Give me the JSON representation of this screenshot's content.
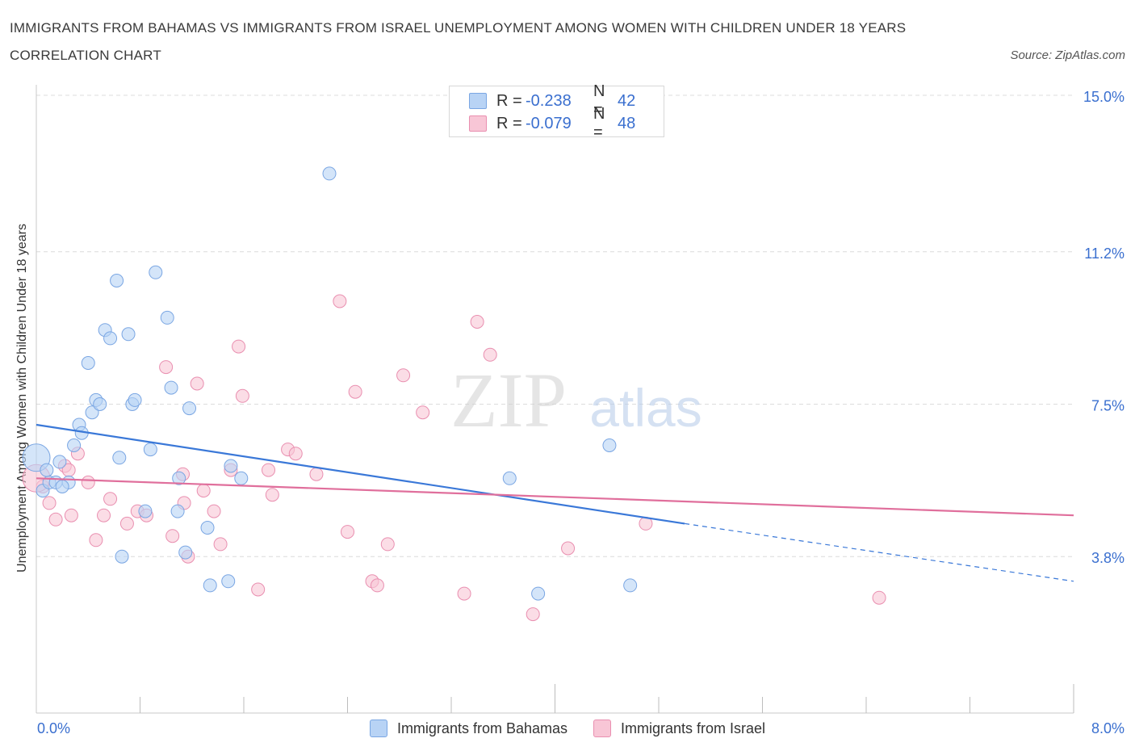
{
  "header": {
    "title": "IMMIGRANTS FROM BAHAMAS VS IMMIGRANTS FROM ISRAEL UNEMPLOYMENT AMONG WOMEN WITH CHILDREN UNDER 18 YEARS CORRELATION CHART",
    "source": "Source: ZipAtlas.com"
  },
  "legend": {
    "rows": [
      {
        "r_label": "R =",
        "r_value": "-0.238",
        "n_label": "N =",
        "n_value": "42"
      },
      {
        "r_label": "R =",
        "r_value": "-0.079",
        "n_label": "N =",
        "n_value": "48"
      }
    ]
  },
  "watermark": {
    "zip": "ZIP",
    "atlas": "atlas"
  },
  "colors": {
    "bahamas_fill": "#b8d3f5",
    "bahamas_stroke": "#7aa6e3",
    "bahamas_line": "#3a78d8",
    "israel_fill": "#f8c6d6",
    "israel_stroke": "#e98fb0",
    "israel_line": "#e06f9c",
    "grid": "#dcdcdc",
    "tick_label": "#3a6fcf"
  },
  "chart_data": {
    "type": "scatter",
    "ylabel": "Unemployment Among Women with Children Under 18 years",
    "xlim": [
      0,
      8
    ],
    "ylim": [
      0,
      15
    ],
    "x_tick_labels": [
      {
        "value": 0,
        "label": "0.0%"
      },
      {
        "value": 8,
        "label": "8.0%"
      }
    ],
    "y_tick_labels": [
      {
        "value": 3.8,
        "label": "3.8%"
      },
      {
        "value": 7.5,
        "label": "7.5%"
      },
      {
        "value": 11.2,
        "label": "11.2%"
      },
      {
        "value": 15.0,
        "label": "15.0%"
      }
    ],
    "grid": true,
    "legend_position": "top-center",
    "series": [
      {
        "name": "Immigrants from Bahamas",
        "r": -0.238,
        "n": 42,
        "trend": {
          "x0": 0,
          "y0": 7.0,
          "x1": 5.0,
          "y1": 4.6,
          "dashed_to_x": 8.0,
          "dashed_to_y": 3.2
        },
        "points": [
          [
            0.0,
            6.2
          ],
          [
            0.05,
            5.4
          ],
          [
            0.1,
            5.6
          ],
          [
            0.15,
            5.6
          ],
          [
            0.18,
            6.1
          ],
          [
            0.25,
            5.6
          ],
          [
            0.29,
            6.5
          ],
          [
            0.33,
            7.0
          ],
          [
            0.35,
            6.8
          ],
          [
            0.4,
            8.5
          ],
          [
            0.43,
            7.3
          ],
          [
            0.46,
            7.6
          ],
          [
            0.49,
            7.5
          ],
          [
            0.53,
            9.3
          ],
          [
            0.57,
            9.1
          ],
          [
            0.62,
            10.5
          ],
          [
            0.64,
            6.2
          ],
          [
            0.66,
            3.8
          ],
          [
            0.71,
            9.2
          ],
          [
            0.74,
            7.5
          ],
          [
            0.76,
            7.6
          ],
          [
            0.84,
            4.9
          ],
          [
            0.88,
            6.4
          ],
          [
            0.92,
            10.7
          ],
          [
            1.01,
            9.6
          ],
          [
            1.04,
            7.9
          ],
          [
            1.09,
            4.9
          ],
          [
            1.1,
            5.7
          ],
          [
            1.15,
            3.9
          ],
          [
            1.18,
            7.4
          ],
          [
            1.32,
            4.5
          ],
          [
            1.34,
            3.1
          ],
          [
            1.48,
            3.2
          ],
          [
            1.5,
            6.0
          ],
          [
            1.58,
            5.7
          ],
          [
            2.26,
            13.1
          ],
          [
            3.65,
            5.7
          ],
          [
            3.87,
            2.9
          ],
          [
            4.42,
            6.5
          ],
          [
            4.58,
            3.1
          ],
          [
            0.08,
            5.9
          ],
          [
            0.2,
            5.5
          ]
        ]
      },
      {
        "name": "Immigrants from Israel",
        "r": -0.079,
        "n": 48,
        "trend": {
          "x0": 0,
          "y0": 5.7,
          "x1": 8.0,
          "y1": 4.8
        },
        "points": [
          [
            0.05,
            5.5
          ],
          [
            0.1,
            5.1
          ],
          [
            0.15,
            4.7
          ],
          [
            0.22,
            6.0
          ],
          [
            0.27,
            4.8
          ],
          [
            0.32,
            6.3
          ],
          [
            0.4,
            5.6
          ],
          [
            0.46,
            4.2
          ],
          [
            0.52,
            4.8
          ],
          [
            0.57,
            5.2
          ],
          [
            0.7,
            4.6
          ],
          [
            0.78,
            4.9
          ],
          [
            0.85,
            4.8
          ],
          [
            1.0,
            8.4
          ],
          [
            1.05,
            4.3
          ],
          [
            1.13,
            5.8
          ],
          [
            1.14,
            5.1
          ],
          [
            1.17,
            3.8
          ],
          [
            1.24,
            8.0
          ],
          [
            1.29,
            5.4
          ],
          [
            1.37,
            4.9
          ],
          [
            1.42,
            4.1
          ],
          [
            1.5,
            5.9
          ],
          [
            1.56,
            8.9
          ],
          [
            1.59,
            7.7
          ],
          [
            1.71,
            3.0
          ],
          [
            1.79,
            5.9
          ],
          [
            1.82,
            5.3
          ],
          [
            1.94,
            6.4
          ],
          [
            2.0,
            6.3
          ],
          [
            2.16,
            5.8
          ],
          [
            2.34,
            10.0
          ],
          [
            2.46,
            7.8
          ],
          [
            2.4,
            4.4
          ],
          [
            2.59,
            3.2
          ],
          [
            2.63,
            3.1
          ],
          [
            2.71,
            4.1
          ],
          [
            2.83,
            8.2
          ],
          [
            2.98,
            7.3
          ],
          [
            3.3,
            2.9
          ],
          [
            3.4,
            9.5
          ],
          [
            3.5,
            8.7
          ],
          [
            3.83,
            2.4
          ],
          [
            4.1,
            4.0
          ],
          [
            4.7,
            4.6
          ],
          [
            6.5,
            2.8
          ],
          [
            0.25,
            5.9
          ],
          [
            0.0,
            5.7
          ]
        ]
      }
    ]
  },
  "bottom_legend": {
    "items": [
      {
        "label": "Immigrants from Bahamas"
      },
      {
        "label": "Immigrants from Israel"
      }
    ]
  }
}
